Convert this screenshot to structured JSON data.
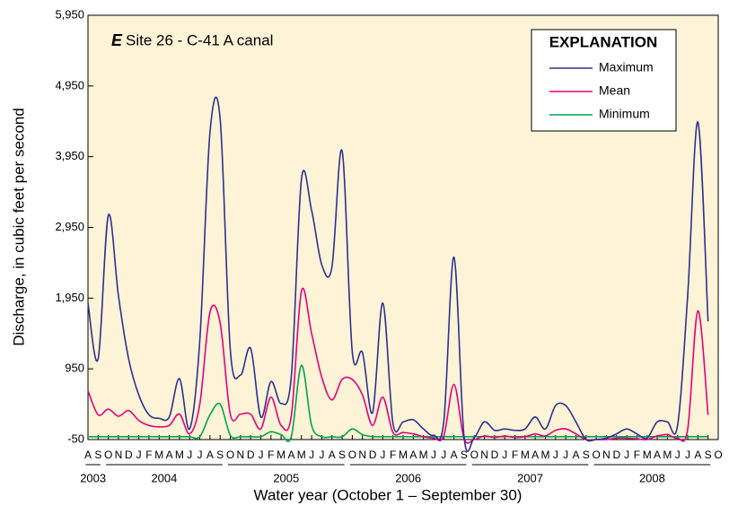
{
  "chart_data": {
    "type": "line",
    "panel": "E",
    "title": "Site 26 - C-41 A canal",
    "xlabel": "Water year (October 1 – September 30)",
    "ylabel": "Discharge, in cubic feet per second",
    "legend_title": "EXPLANATION",
    "categories": [
      "A",
      "S",
      "O",
      "N",
      "D",
      "J",
      "F",
      "M",
      "A",
      "M",
      "J",
      "J",
      "A",
      "S",
      "O",
      "N",
      "D",
      "J",
      "F",
      "M",
      "A",
      "M",
      "J",
      "J",
      "A",
      "S",
      "O",
      "N",
      "D",
      "J",
      "F",
      "M",
      "A",
      "M",
      "J",
      "J",
      "A",
      "S",
      "O",
      "N",
      "D",
      "J",
      "F",
      "M",
      "A",
      "M",
      "J",
      "J",
      "A",
      "S",
      "O",
      "N",
      "D",
      "J",
      "F",
      "M",
      "A",
      "M",
      "J",
      "J",
      "A",
      "S",
      "O"
    ],
    "x_groups": [
      {
        "label": "2003",
        "count": 2
      },
      {
        "label": "2004",
        "count": 12
      },
      {
        "label": "2005",
        "count": 12
      },
      {
        "label": "2006",
        "count": 12
      },
      {
        "label": "2007",
        "count": 12
      },
      {
        "label": "2008",
        "count": 12
      }
    ],
    "series": [
      {
        "name": "Maximum",
        "color": "#2e3192",
        "values": [
          1880,
          1090,
          3120,
          1980,
          1090,
          580,
          300,
          250,
          270,
          810,
          100,
          1350,
          4290,
          4490,
          1220,
          860,
          1240,
          270,
          770,
          460,
          840,
          3630,
          3190,
          2420,
          2390,
          4030,
          1190,
          1180,
          330,
          1880,
          180,
          200,
          230,
          100,
          10,
          200,
          2530,
          -20,
          -20,
          200,
          80,
          100,
          80,
          100,
          270,
          100,
          430,
          430,
          200,
          -50,
          -50,
          -30,
          30,
          100,
          30,
          -30,
          200,
          200,
          150,
          2000,
          4440,
          1620,
          null
        ]
      },
      {
        "name": "Mean",
        "color": "#e6007e",
        "values": [
          640,
          300,
          380,
          280,
          360,
          220,
          150,
          130,
          150,
          310,
          30,
          450,
          1750,
          1600,
          310,
          310,
          310,
          100,
          550,
          150,
          280,
          2050,
          1450,
          830,
          510,
          800,
          800,
          580,
          150,
          550,
          50,
          50,
          30,
          -10,
          -30,
          0,
          730,
          -40,
          -50,
          0,
          -20,
          0,
          -20,
          -10,
          30,
          0,
          80,
          100,
          30,
          -50,
          -50,
          -50,
          -30,
          -30,
          -40,
          -50,
          0,
          20,
          -30,
          100,
          1770,
          300,
          null
        ]
      },
      {
        "name": "Minimum",
        "color": "#00a651",
        "values": [
          -10,
          -10,
          -10,
          -10,
          -10,
          -10,
          -10,
          -10,
          -10,
          -10,
          -10,
          -10,
          300,
          450,
          10,
          -10,
          -10,
          -10,
          60,
          20,
          -10,
          1000,
          150,
          -10,
          -10,
          -10,
          100,
          20,
          -10,
          -10,
          -10,
          -10,
          -10,
          -10,
          -10,
          -10,
          -10,
          -10,
          -10,
          -10,
          -10,
          -10,
          -10,
          -10,
          -10,
          -10,
          -10,
          -10,
          -10,
          -10,
          -10,
          -10,
          -10,
          -10,
          -10,
          -10,
          -10,
          -10,
          -10,
          -10,
          -10,
          -10,
          null
        ]
      }
    ],
    "ylim": [
      -50,
      5950
    ],
    "yticks": [
      -50,
      950,
      {
        "value": 1950,
        "label": "1,950"
      },
      {
        "value": 2950,
        "label": "2,950"
      },
      {
        "value": 3950,
        "label": "3,950"
      },
      {
        "value": 4950,
        "label": "4,950"
      },
      {
        "value": 5950,
        "label": "5,950"
      }
    ],
    "legend": "upper right"
  }
}
